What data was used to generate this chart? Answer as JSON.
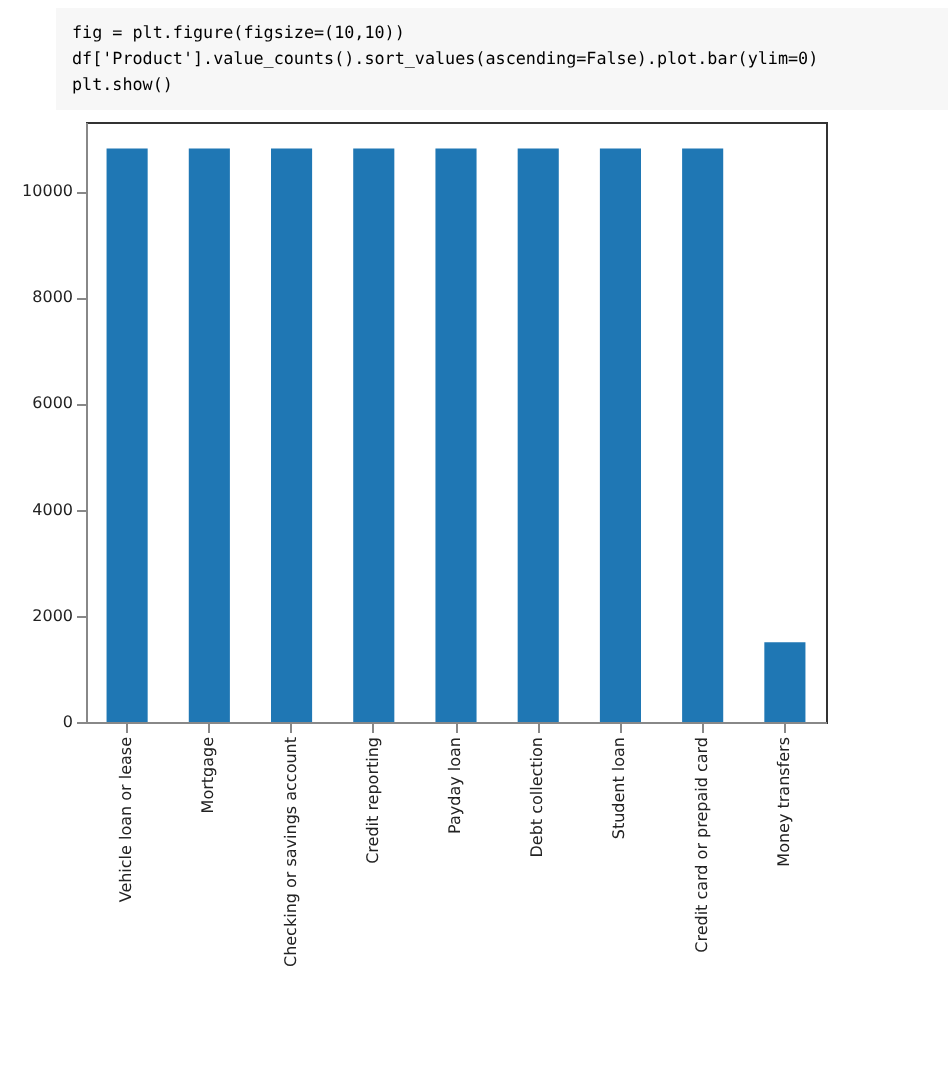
{
  "chart_data": {
    "type": "bar",
    "annotations": [
      "fig = plt.figure(figsize=(10,10))",
      "df['Product'].value_counts().sort_values(ascending=False).plot.bar(ylim=0)",
      "plt.show()"
    ],
    "categories": [
      "Vehicle loan or lease",
      "Mortgage",
      "Checking or savings account",
      "Credit reporting",
      "Payday loan",
      "Debt collection",
      "Student loan",
      "Credit card or prepaid card",
      "Money transfers"
    ],
    "values": [
      10800,
      10800,
      10800,
      10800,
      10800,
      10800,
      10800,
      10800,
      1500
    ],
    "color": "#1f77b4",
    "ylim": [
      0,
      11300
    ],
    "yticks": [
      0,
      2000,
      4000,
      6000,
      8000,
      10000
    ],
    "grid": false
  }
}
